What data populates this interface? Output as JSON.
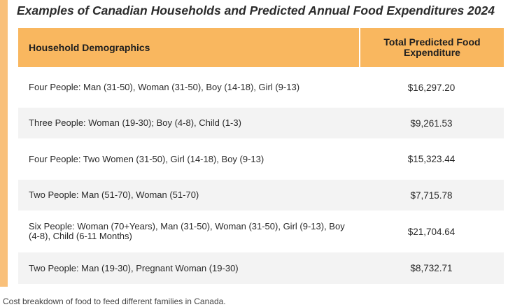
{
  "title": "Examples of Canadian Households and Predicted Annual Food Expenditures 2024",
  "headers": {
    "demographics": "Household Demographics",
    "expenditure_line1": "Total Predicted Food",
    "expenditure_line2": "Expenditure"
  },
  "rows": [
    {
      "demographics": "Four People: Man (31-50), Woman (31-50), Boy (14-18), Girl (9-13)",
      "expenditure": "$16,297.20"
    },
    {
      "demographics": "Three People: Woman (19-30); Boy (4-8), Child (1-3)",
      "expenditure": "$9,261.53"
    },
    {
      "demographics": "Four People: Two Women (31-50), Girl (14-18), Boy (9-13)",
      "expenditure": "$15,323.44"
    },
    {
      "demographics": "Two People: Man (51-70), Woman (51-70)",
      "expenditure": "$7,715.78"
    },
    {
      "demographics": "Six People: Woman (70+Years), Man (31-50), Woman (31-50), Girl (9-13), Boy (4-8), Child (6-11 Months)",
      "expenditure": "$21,704.64"
    },
    {
      "demographics": "Two People: Man (19-30), Pregnant Woman (19-30)",
      "expenditure": "$8,732.71"
    }
  ],
  "caption": "Cost breakdown of food to feed different families in Canada.",
  "colors": {
    "header_bg": "#f9b75f",
    "accent_bar": "#f9c07a",
    "alt_row_bg": "#f3f3f3"
  }
}
